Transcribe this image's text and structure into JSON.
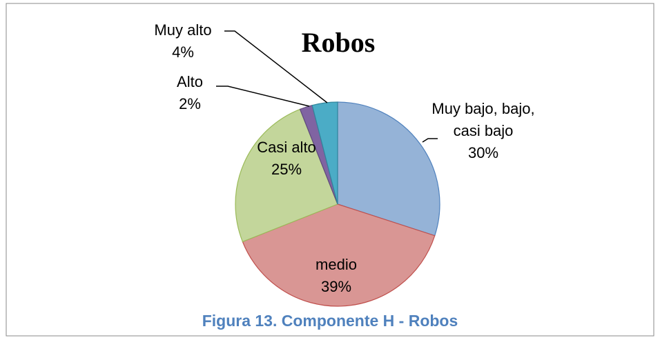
{
  "chart_data": {
    "type": "pie",
    "title": "Robos",
    "categories": [
      "Muy bajo, bajo, casi bajo",
      "medio",
      "Casi alto",
      "Alto",
      "Muy alto"
    ],
    "values": [
      30,
      39,
      25,
      2,
      4
    ],
    "value_labels": [
      "30%",
      "39%",
      "25%",
      "2%",
      "4%"
    ],
    "colors": [
      "#95b3d7",
      "#d99694",
      "#c3d69b",
      "#8064a2",
      "#4bacc6"
    ],
    "strokes": [
      "#4f81bd",
      "#c0504d",
      "#9bbb59",
      "#5f4a7c",
      "#31859c"
    ],
    "caption": "Figura 13. Componente H - Robos"
  }
}
